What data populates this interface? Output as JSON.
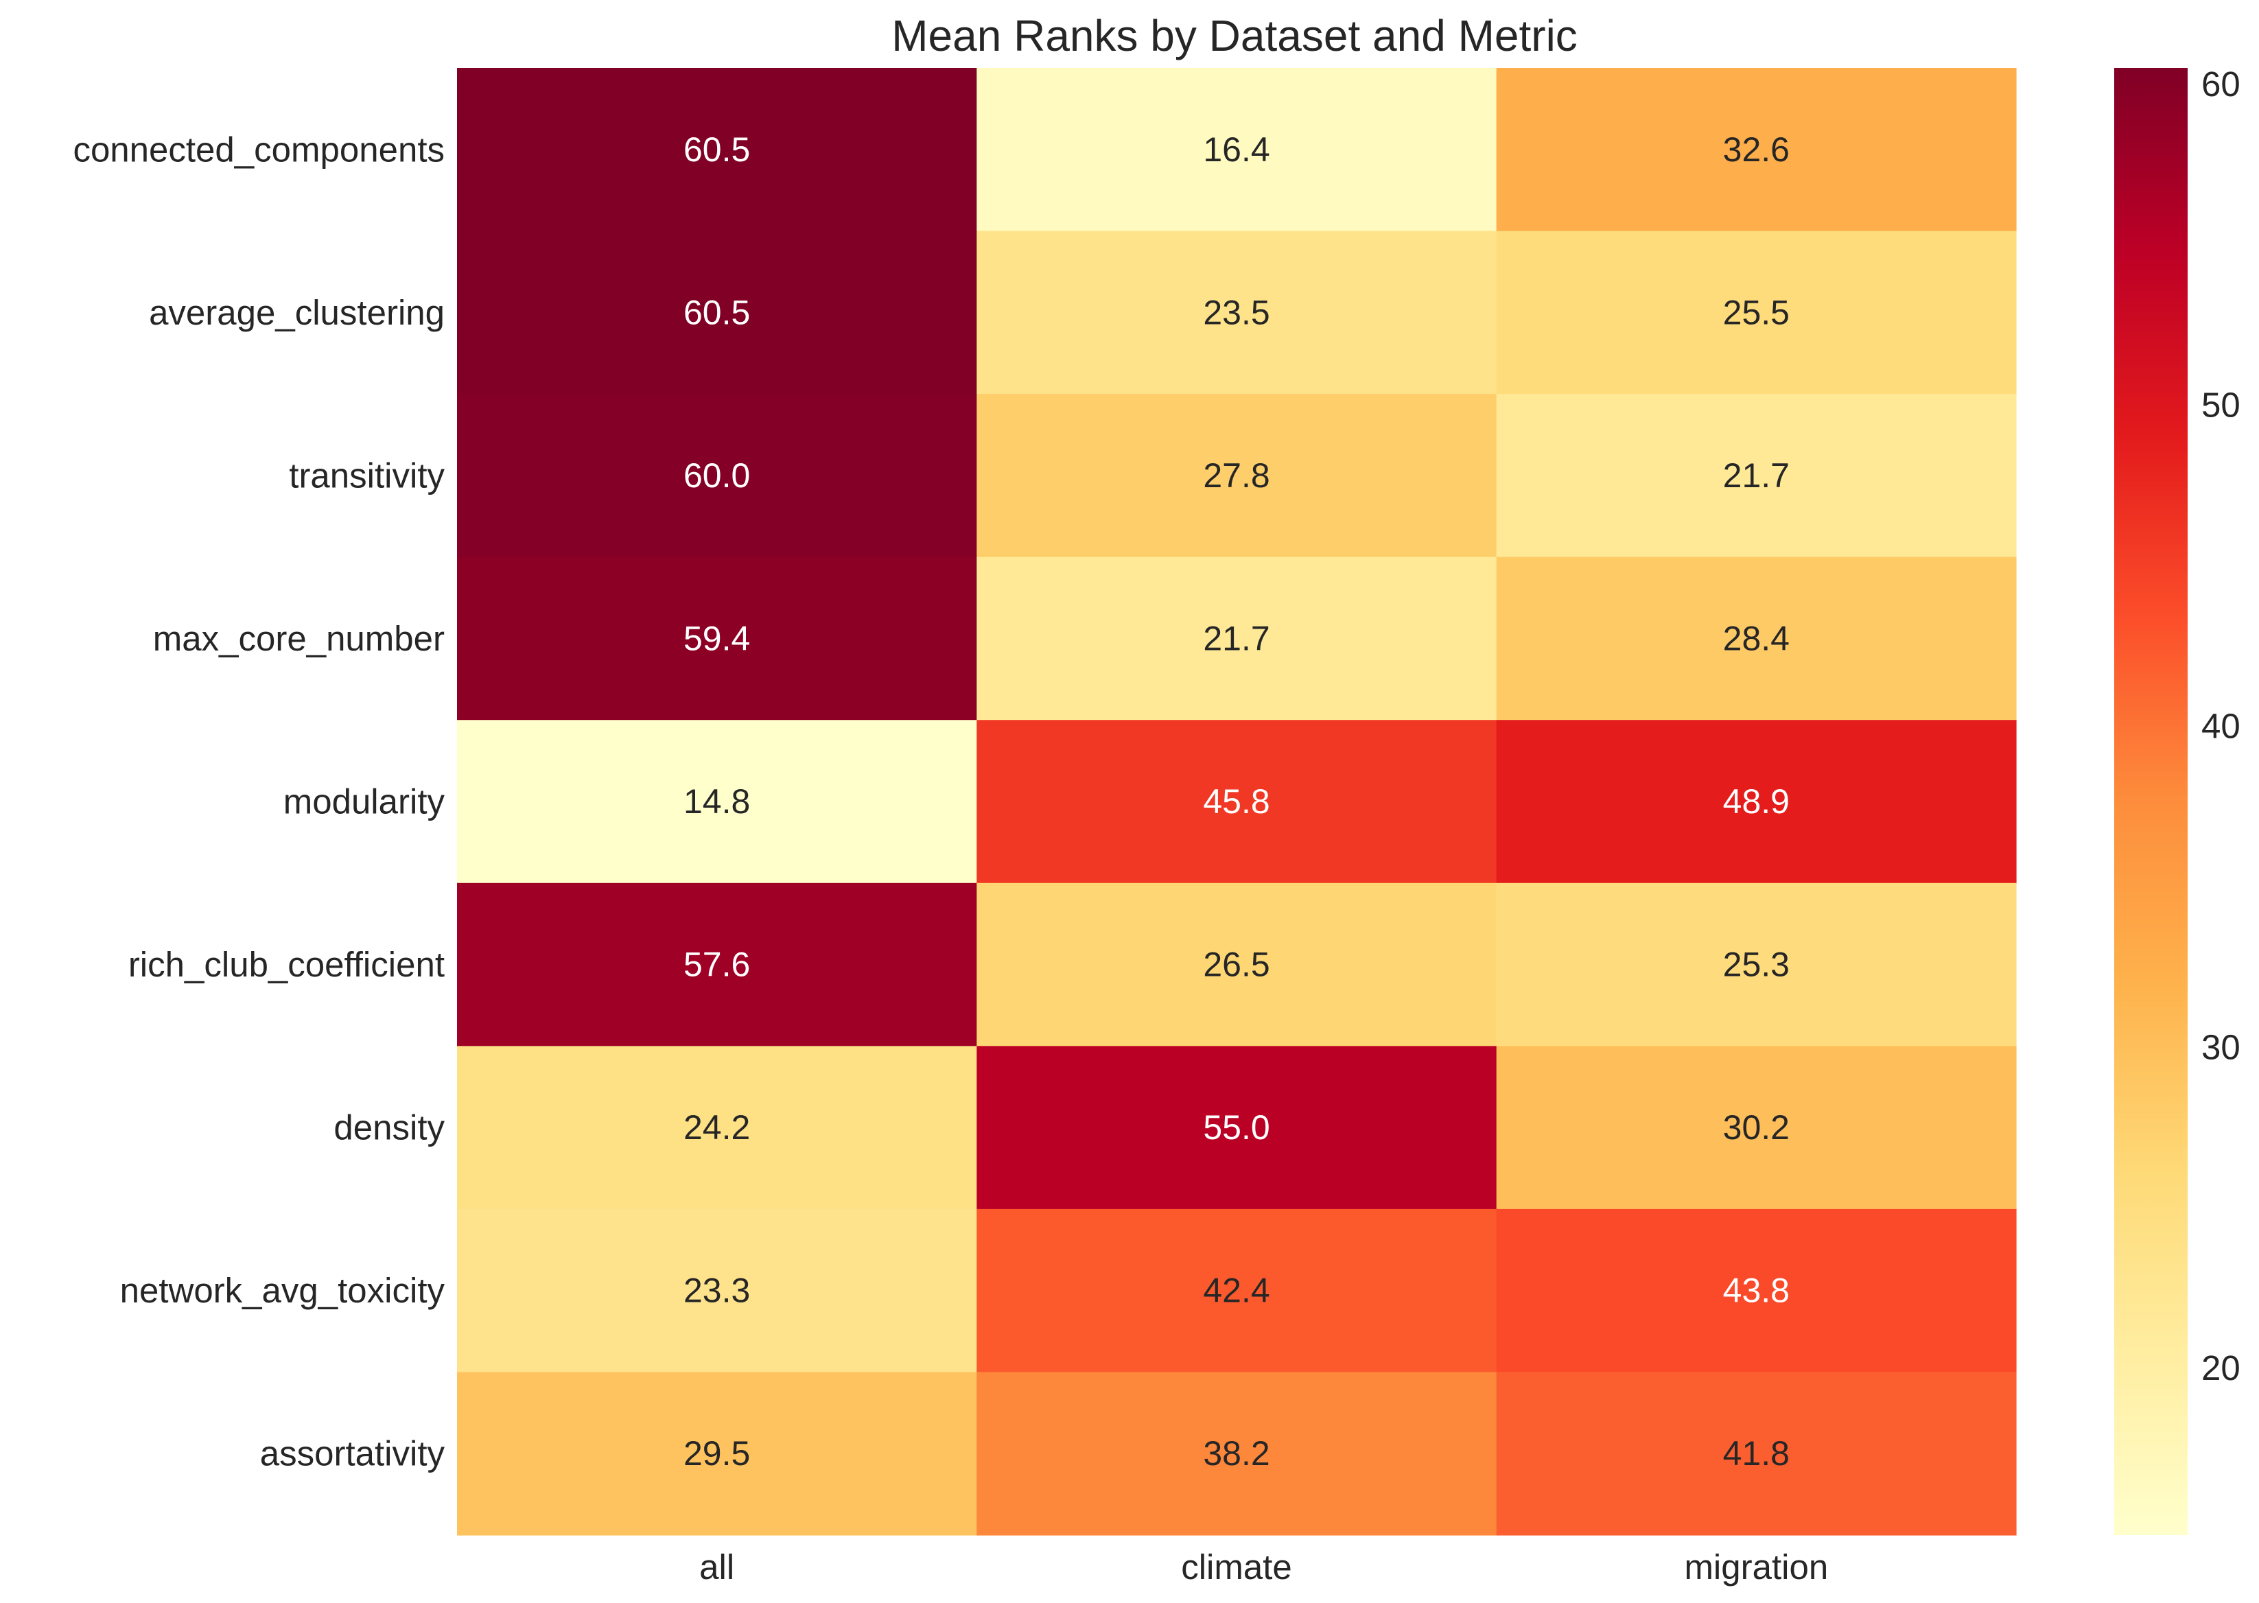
{
  "chart_data": {
    "type": "heatmap",
    "title": "Mean Ranks by Dataset and Metric",
    "xlabel": "",
    "ylabel": "",
    "columns": [
      "all",
      "climate",
      "migration"
    ],
    "rows": [
      "connected_components",
      "average_clustering",
      "transitivity",
      "max_core_number",
      "modularity",
      "rich_club_coefficient",
      "density",
      "network_avg_toxicity",
      "assortativity"
    ],
    "values": [
      [
        60.5,
        16.4,
        32.6
      ],
      [
        60.5,
        23.5,
        25.5
      ],
      [
        60.0,
        27.8,
        21.7
      ],
      [
        59.4,
        21.7,
        28.4
      ],
      [
        14.8,
        45.8,
        48.9
      ],
      [
        57.6,
        26.5,
        25.3
      ],
      [
        24.2,
        55.0,
        30.2
      ],
      [
        23.3,
        42.4,
        43.8
      ],
      [
        29.5,
        38.2,
        41.8
      ]
    ],
    "colormap": "YlOrRd",
    "color_range": [
      14.8,
      60.5
    ],
    "colorbar_ticks": [
      20,
      30,
      40,
      50,
      60
    ],
    "annotations": true,
    "grid": false
  }
}
